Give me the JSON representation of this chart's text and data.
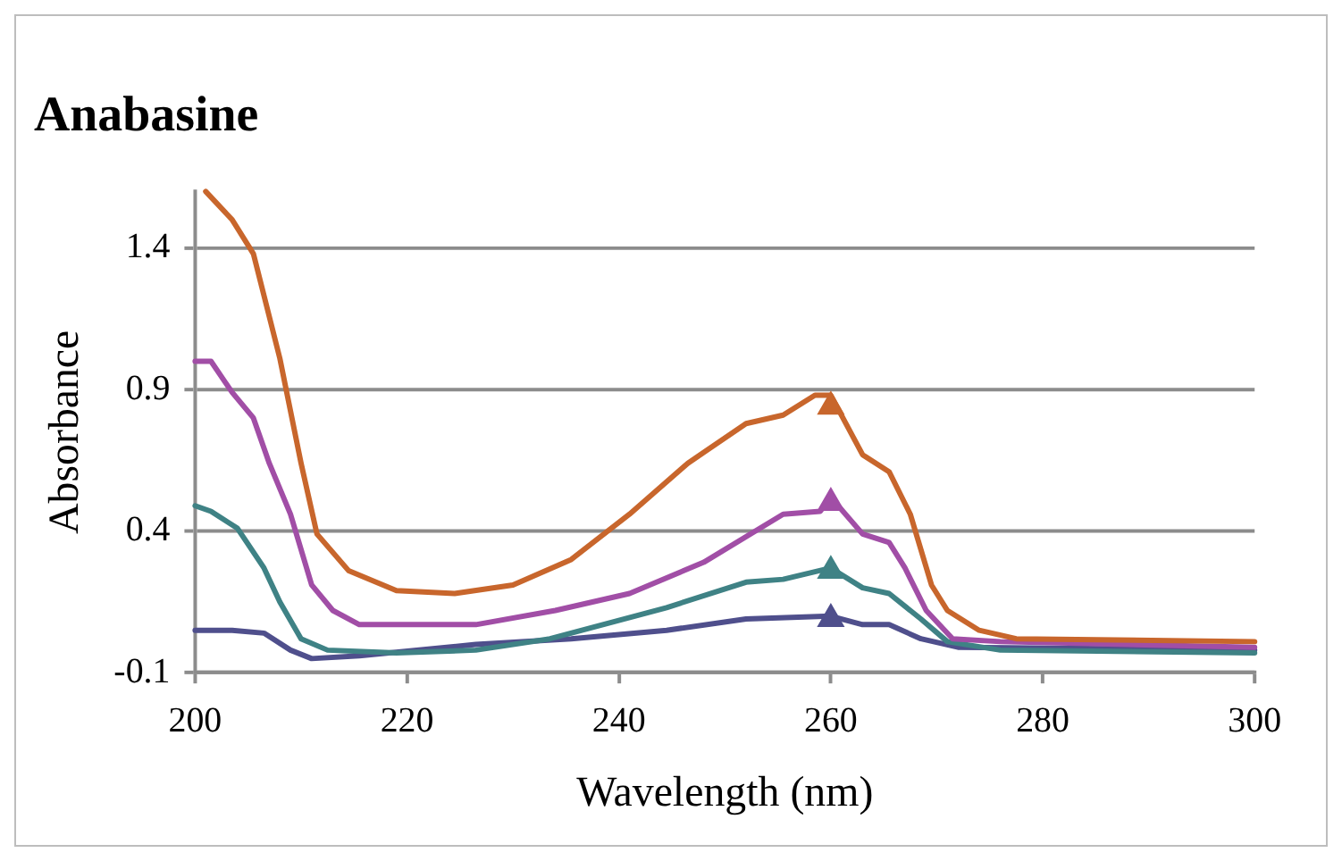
{
  "chart_data": {
    "type": "line",
    "title": "Anabasine",
    "xlabel": "Wavelength (nm)",
    "ylabel": "Absorbance",
    "xlim": [
      200,
      300
    ],
    "xticks": [
      200,
      220,
      240,
      260,
      280,
      300
    ],
    "ylim": [
      -0.1,
      1.6
    ],
    "yticks": [
      -0.1,
      0.4,
      0.9,
      1.4
    ],
    "grid": "y",
    "legend": false,
    "line_style": "solid",
    "marker": "none",
    "series": [
      {
        "color": "#c8662c",
        "x": [
          201,
          203.5,
          205.5,
          208,
          210,
          211.5,
          214.5,
          219,
          224.5,
          230,
          235.5,
          241,
          246.5,
          252,
          255.5,
          258.5,
          260,
          263,
          265.5,
          267.5,
          269.5,
          271,
          274,
          277.5,
          300
        ],
        "values": [
          1.6,
          1.5,
          1.38,
          1.01,
          0.64,
          0.39,
          0.26,
          0.19,
          0.18,
          0.21,
          0.3,
          0.46,
          0.64,
          0.78,
          0.81,
          0.88,
          0.88,
          0.67,
          0.61,
          0.46,
          0.21,
          0.12,
          0.05,
          0.02,
          0.01
        ]
      },
      {
        "color": "#a14ea6",
        "x": [
          200,
          201.5,
          203.5,
          205.5,
          207,
          209,
          211,
          213,
          215.5,
          221,
          226.5,
          234,
          241,
          248,
          255.5,
          259,
          260,
          263,
          265.5,
          267,
          269,
          271.5,
          276,
          300
        ],
        "values": [
          1,
          1,
          0.89,
          0.8,
          0.64,
          0.46,
          0.21,
          0.12,
          0.07,
          0.07,
          0.07,
          0.12,
          0.18,
          0.29,
          0.46,
          0.47,
          0.52,
          0.39,
          0.36,
          0.27,
          0.12,
          0.02,
          0.01,
          -0.01
        ]
      },
      {
        "color": "#3f8285",
        "x": [
          200,
          201.5,
          204,
          206.5,
          208,
          210,
          212.5,
          219,
          226.5,
          233.5,
          244.5,
          252,
          255.5,
          260,
          263,
          265.5,
          268.5,
          271,
          276,
          300
        ],
        "values": [
          0.49,
          0.47,
          0.41,
          0.27,
          0.15,
          0.02,
          -0.02,
          -0.03,
          -0.02,
          0.02,
          0.13,
          0.22,
          0.23,
          0.27,
          0.2,
          0.18,
          0.09,
          0.01,
          -0.02,
          -0.03
        ]
      },
      {
        "color": "#4f4f8c",
        "x": [
          200,
          203.5,
          206.5,
          209,
          211,
          215.5,
          226.5,
          235.5,
          244.5,
          252,
          260,
          263,
          265.5,
          268.5,
          272,
          300
        ],
        "values": [
          0.05,
          0.05,
          0.04,
          -0.02,
          -0.05,
          -0.04,
          0,
          0.02,
          0.05,
          0.09,
          0.1,
          0.07,
          0.07,
          0.02,
          -0.01,
          -0.02
        ]
      },
      {
        "type": "scatter",
        "marker": "triangle",
        "color": "#c8662c",
        "x": [
          260
        ],
        "values": [
          0.84
        ]
      },
      {
        "type": "scatter",
        "marker": "triangle",
        "color": "#a14ea6",
        "x": [
          260
        ],
        "values": [
          0.5
        ]
      },
      {
        "type": "scatter",
        "marker": "triangle",
        "color": "#3f8285",
        "x": [
          260
        ],
        "values": [
          0.26
        ]
      },
      {
        "type": "scatter",
        "marker": "triangle",
        "color": "#4f4f8c",
        "x": [
          260
        ],
        "values": [
          0.09
        ]
      }
    ]
  }
}
